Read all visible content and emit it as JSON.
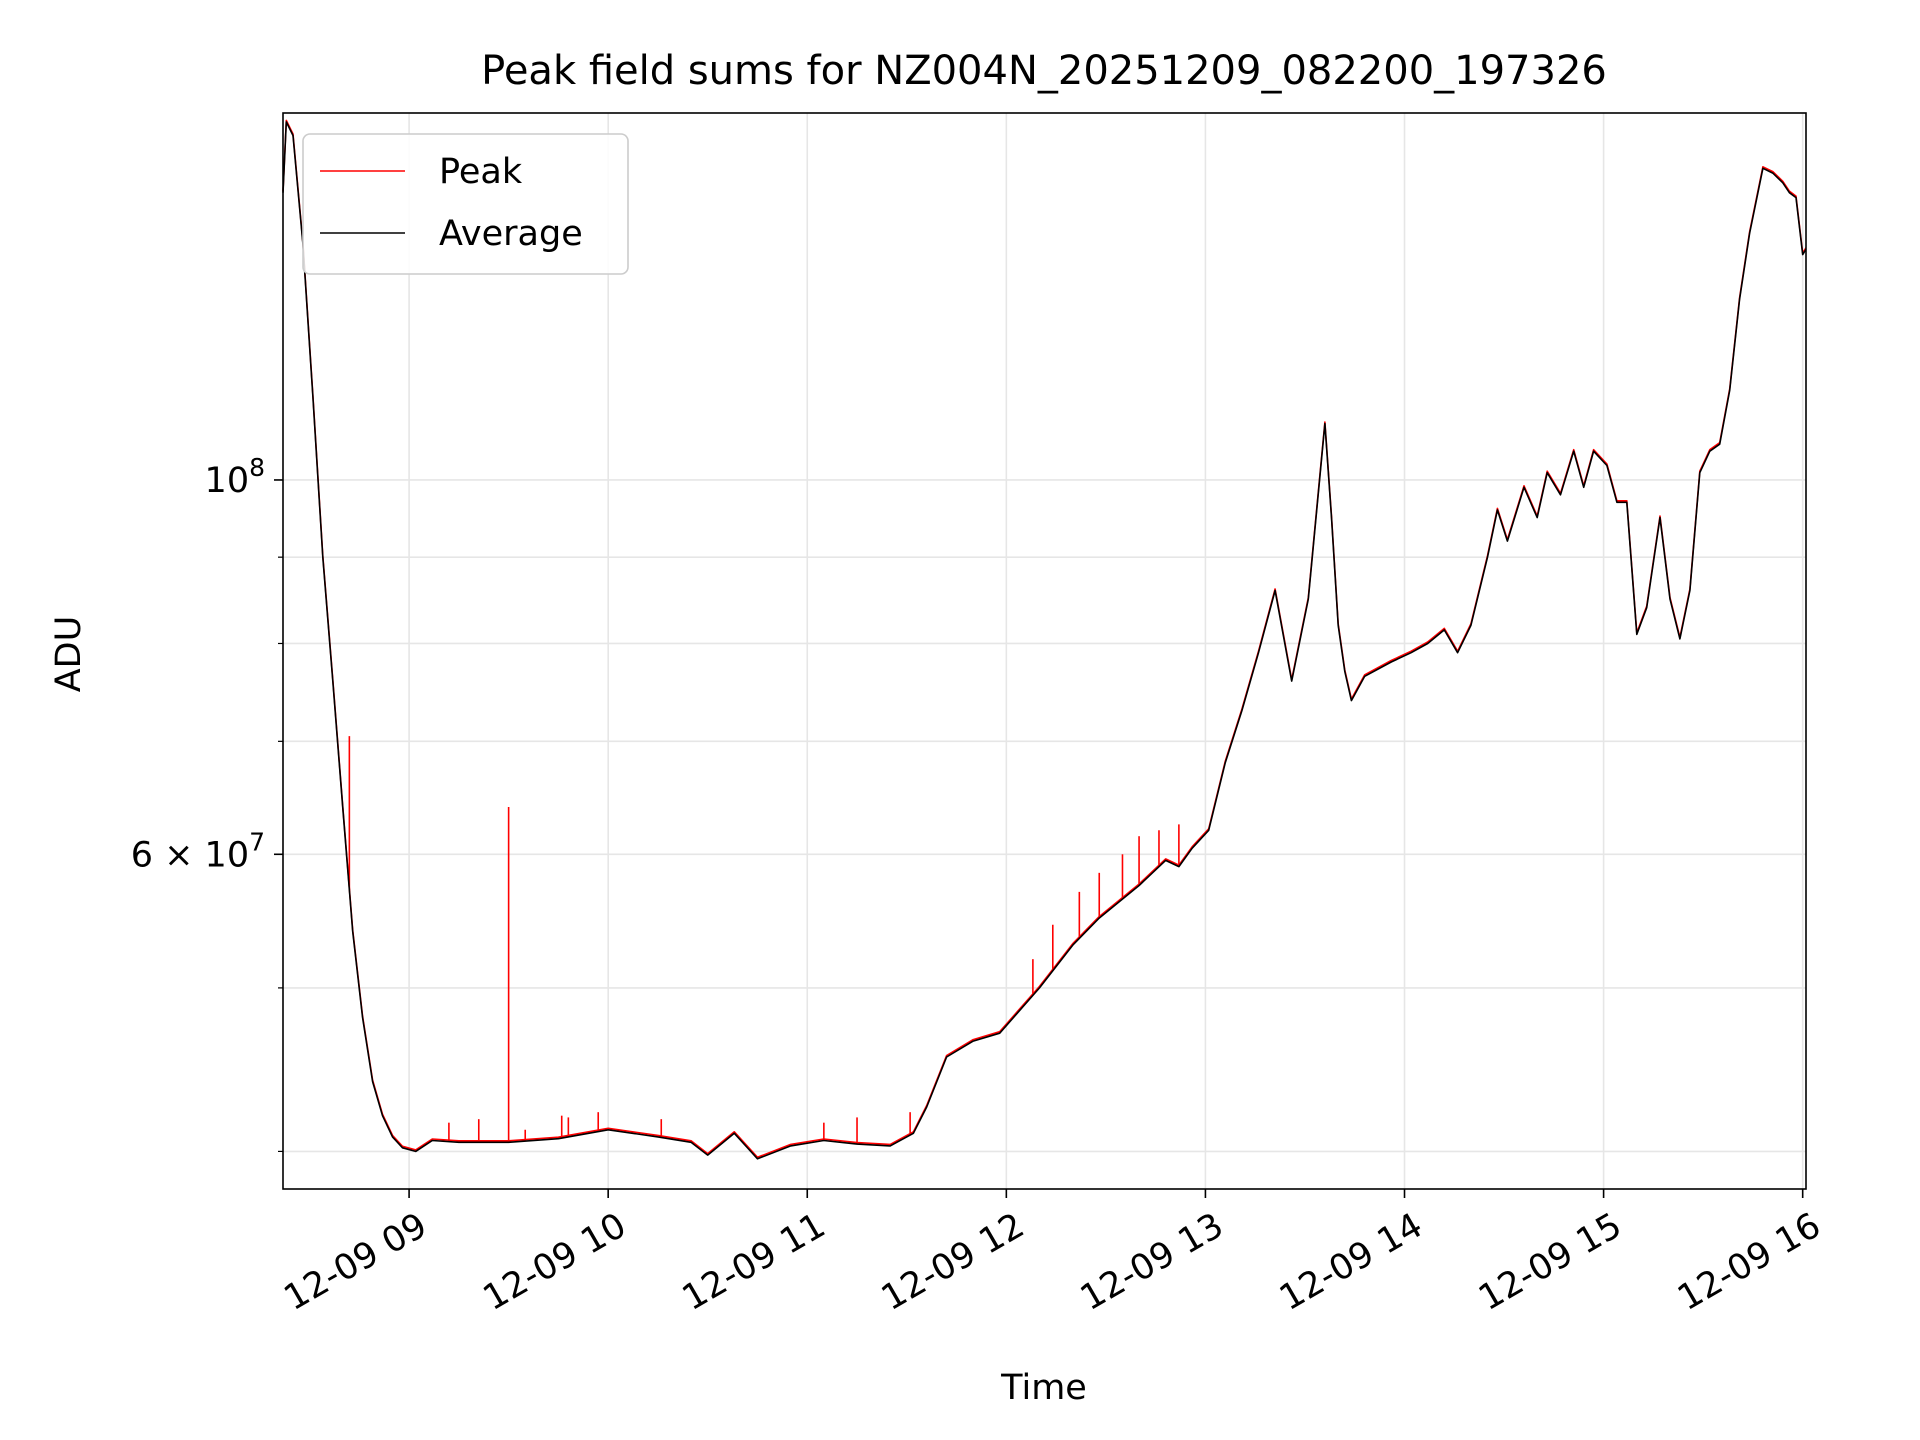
{
  "chart_data": {
    "type": "line",
    "title": "Peak field sums for NZ004N_20251209_082200_197326",
    "xlabel": "Time",
    "ylabel": "ADU",
    "y_scale": "log",
    "grid": true,
    "legend_position": "upper-left",
    "xlim": [
      "2025-12-09 08:22",
      "2025-12-09 16:01"
    ],
    "ylim": [
      38000000,
      165000000
    ],
    "x_ticks": [
      {
        "value": "2025-12-09 09:00",
        "label": "12-09 09"
      },
      {
        "value": "2025-12-09 10:00",
        "label": "12-09 10"
      },
      {
        "value": "2025-12-09 11:00",
        "label": "12-09 11"
      },
      {
        "value": "2025-12-09 12:00",
        "label": "12-09 12"
      },
      {
        "value": "2025-12-09 13:00",
        "label": "12-09 13"
      },
      {
        "value": "2025-12-09 14:00",
        "label": "12-09 14"
      },
      {
        "value": "2025-12-09 15:00",
        "label": "12-09 15"
      },
      {
        "value": "2025-12-09 16:00",
        "label": "12-09 16"
      }
    ],
    "y_major_ticks": [
      {
        "value": 100000000,
        "base": "10",
        "exp": "8",
        "coef": ""
      },
      {
        "value": 60000000,
        "base": "10",
        "exp": "7",
        "coef": "6 × "
      }
    ],
    "y_minor_ticks": [
      40000000,
      50000000,
      70000000,
      80000000,
      90000000
    ],
    "series": [
      {
        "name": "Peak",
        "color": "#ff0000",
        "spikes": [
          {
            "x": "2025-12-09 08:42",
            "y": 70500000
          },
          {
            "x": "2025-12-09 09:30",
            "y": 64000000
          },
          {
            "x": "2025-12-09 09:12",
            "y": 41600000
          },
          {
            "x": "2025-12-09 09:21",
            "y": 41800000
          },
          {
            "x": "2025-12-09 09:35",
            "y": 41200000
          },
          {
            "x": "2025-12-09 09:46",
            "y": 42000000
          },
          {
            "x": "2025-12-09 09:48",
            "y": 41900000
          },
          {
            "x": "2025-12-09 09:57",
            "y": 42200000
          },
          {
            "x": "2025-12-09 10:16",
            "y": 41800000
          },
          {
            "x": "2025-12-09 11:05",
            "y": 41600000
          },
          {
            "x": "2025-12-09 11:15",
            "y": 41900000
          },
          {
            "x": "2025-12-09 11:31",
            "y": 42200000
          },
          {
            "x": "2025-12-09 12:08",
            "y": 52000000
          },
          {
            "x": "2025-12-09 12:14",
            "y": 54500000
          },
          {
            "x": "2025-12-09 12:22",
            "y": 57000000
          },
          {
            "x": "2025-12-09 12:28",
            "y": 58500000
          },
          {
            "x": "2025-12-09 12:35",
            "y": 60000000
          },
          {
            "x": "2025-12-09 12:40",
            "y": 61500000
          },
          {
            "x": "2025-12-09 12:46",
            "y": 62000000
          },
          {
            "x": "2025-12-09 12:52",
            "y": 62500000
          }
        ]
      },
      {
        "name": "Average",
        "color": "#000000",
        "x": [
          "2025-12-09 08:22",
          "2025-12-09 08:23",
          "2025-12-09 08:25",
          "2025-12-09 08:28",
          "2025-12-09 08:31",
          "2025-12-09 08:34",
          "2025-12-09 08:37",
          "2025-12-09 08:40",
          "2025-12-09 08:43",
          "2025-12-09 08:46",
          "2025-12-09 08:49",
          "2025-12-09 08:52",
          "2025-12-09 08:55",
          "2025-12-09 08:58",
          "2025-12-09 09:02",
          "2025-12-09 09:07",
          "2025-12-09 09:15",
          "2025-12-09 09:30",
          "2025-12-09 09:45",
          "2025-12-09 10:00",
          "2025-12-09 10:15",
          "2025-12-09 10:25",
          "2025-12-09 10:30",
          "2025-12-09 10:38",
          "2025-12-09 10:45",
          "2025-12-09 10:55",
          "2025-12-09 11:05",
          "2025-12-09 11:15",
          "2025-12-09 11:25",
          "2025-12-09 11:32",
          "2025-12-09 11:36",
          "2025-12-09 11:42",
          "2025-12-09 11:50",
          "2025-12-09 11:58",
          "2025-12-09 12:10",
          "2025-12-09 12:20",
          "2025-12-09 12:28",
          "2025-12-09 12:40",
          "2025-12-09 12:48",
          "2025-12-09 12:52",
          "2025-12-09 12:56",
          "2025-12-09 13:01",
          "2025-12-09 13:06",
          "2025-12-09 13:11",
          "2025-12-09 13:16",
          "2025-12-09 13:21",
          "2025-12-09 13:26",
          "2025-12-09 13:31",
          "2025-12-09 13:36",
          "2025-12-09 13:38",
          "2025-12-09 13:40",
          "2025-12-09 13:42",
          "2025-12-09 13:44",
          "2025-12-09 13:48",
          "2025-12-09 13:56",
          "2025-12-09 14:02",
          "2025-12-09 14:07",
          "2025-12-09 14:12",
          "2025-12-09 14:16",
          "2025-12-09 14:20",
          "2025-12-09 14:25",
          "2025-12-09 14:28",
          "2025-12-09 14:31",
          "2025-12-09 14:36",
          "2025-12-09 14:40",
          "2025-12-09 14:43",
          "2025-12-09 14:47",
          "2025-12-09 14:51",
          "2025-12-09 14:54",
          "2025-12-09 14:57",
          "2025-12-09 15:01",
          "2025-12-09 15:04",
          "2025-12-09 15:07",
          "2025-12-09 15:10",
          "2025-12-09 15:13",
          "2025-12-09 15:17",
          "2025-12-09 15:20",
          "2025-12-09 15:23",
          "2025-12-09 15:26",
          "2025-12-09 15:29",
          "2025-12-09 15:32",
          "2025-12-09 15:35",
          "2025-12-09 15:38",
          "2025-12-09 15:41",
          "2025-12-09 15:44",
          "2025-12-09 15:48",
          "2025-12-09 15:51",
          "2025-12-09 15:54",
          "2025-12-09 15:56",
          "2025-12-09 15:58",
          "2025-12-09 16:00",
          "2025-12-09 16:01"
        ],
        "values": [
          148000000,
          163000000,
          160000000,
          138000000,
          112000000,
          90000000,
          76000000,
          64000000,
          54000000,
          48000000,
          44000000,
          42000000,
          40800000,
          40200000,
          40000000,
          40600000,
          40500000,
          40500000,
          40700000,
          41200000,
          40800000,
          40500000,
          39800000,
          41000000,
          39600000,
          40300000,
          40600000,
          40400000,
          40300000,
          41000000,
          42500000,
          45500000,
          46500000,
          47000000,
          50000000,
          53000000,
          55000000,
          57500000,
          59500000,
          59000000,
          60500000,
          62000000,
          68000000,
          73000000,
          79000000,
          86000000,
          76000000,
          85000000,
          108000000,
          95000000,
          82000000,
          77000000,
          74000000,
          76500000,
          78000000,
          79000000,
          80000000,
          81500000,
          79000000,
          82000000,
          90000000,
          96000000,
          92000000,
          99000000,
          95000000,
          101000000,
          98000000,
          104000000,
          99000000,
          104000000,
          102000000,
          97000000,
          97000000,
          81000000,
          84000000,
          95000000,
          85000000,
          80500000,
          86000000,
          101000000,
          104000000,
          105000000,
          113000000,
          128000000,
          140000000,
          153000000,
          152000000,
          150000000,
          148000000,
          147000000,
          136000000,
          137000000
        ]
      }
    ]
  }
}
